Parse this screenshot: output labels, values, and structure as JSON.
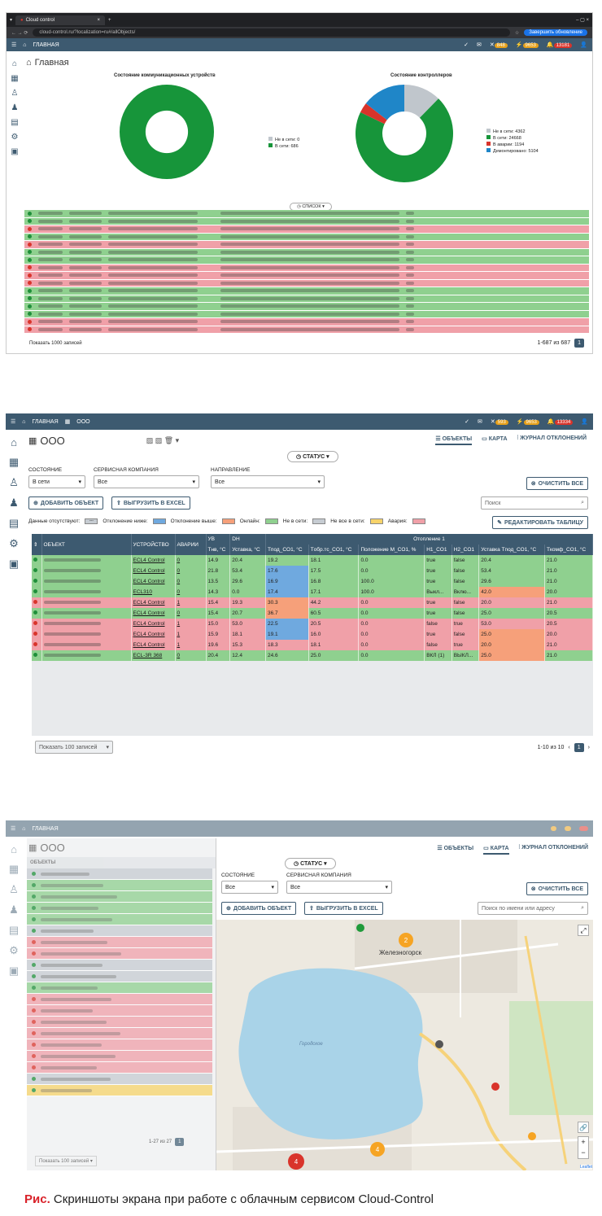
{
  "s1": {
    "browser_tab": "Cloud control",
    "url": "cloud-control.ru/?localization=ru#/allObjects/",
    "update_button": "Завершить обновление",
    "top_crumb": "ГЛАВНАЯ",
    "badges": [
      "848",
      "9653",
      "13181"
    ],
    "title": "Главная",
    "chart_data": [
      {
        "type": "pie",
        "title": "Состояние коммуникационных устройств",
        "legend": [
          "Не в сети: 0",
          "В сети: 686"
        ],
        "categories": [
          "Не в сети",
          "В сети"
        ],
        "values": [
          0,
          686
        ],
        "colors": [
          "#c0c6cc",
          "#17953a"
        ]
      },
      {
        "type": "pie",
        "title": "Состояние контроллеров",
        "legend": [
          "Не в сети: 4362",
          "В сети: 24668",
          "В аварии: 1194",
          "Демонтировано: 5104"
        ],
        "categories": [
          "Не в сети",
          "В сети",
          "В аварии",
          "Демонтировано"
        ],
        "values": [
          4362,
          24668,
          1194,
          5104
        ],
        "colors": [
          "#c0c6cc",
          "#17953a",
          "#d9342b",
          "#1f86c8"
        ]
      }
    ],
    "status_pill": "СПИСОК",
    "rows": [
      "green",
      "green",
      "red",
      "green",
      "red",
      "green",
      "green",
      "red",
      "red",
      "red",
      "green",
      "green",
      "green",
      "green",
      "red",
      "red"
    ],
    "footer_show": "Показать 1000 записей",
    "footer_range": "1-687 из 687",
    "footer_page": "1"
  },
  "s2": {
    "crumb_home": "ГЛАВНАЯ",
    "crumb_org": "ООО",
    "badges": [
      "593",
      "9653",
      "13334"
    ],
    "title": "ООО",
    "view_tabs": {
      "objects": "ОБЪЕКТЫ",
      "map": "КАРТА",
      "journal": "ЖУРНАЛ ОТКЛОНЕНИЙ"
    },
    "status_pill": "СТАТУС",
    "filters": {
      "state_label": "СОСТОЯНИЕ",
      "state_value": "В сети",
      "company_label": "СЕРВИСНАЯ КОМПАНИЯ",
      "company_value": "Все",
      "direction_label": "НАПРАВЛЕНИЕ",
      "direction_value": "Все",
      "clear": "ОЧИСТИТЬ ВСЕ"
    },
    "add_object": "ДОБАВИТЬ ОБЪЕКТ",
    "export_excel": "ВЫГРУЗИТЬ В EXCEL",
    "search_placeholder": "Поиск",
    "legend": {
      "no_data": "Данные отсутствуют:",
      "no_data_sym": "---",
      "below": "Отклонение ниже:",
      "above": "Отклонение выше:",
      "online": "Онлайн:",
      "offline": "Не в сети:",
      "partial": "Не все в сети:",
      "alarm": "Авария:"
    },
    "edit_table": "РЕДАКТИРОВАТЬ ТАБЛИЦУ",
    "columns": {
      "object": "ОБЪЕКТ",
      "device": "УСТРОЙСТВО",
      "alarms": "АВАРИИ",
      "grp_uv": "УВ",
      "grp_dh": "DH",
      "grp_heat": "Отопление 1",
      "tnv": "Тнв, °С",
      "ust": "Уставка, °С",
      "tpod": "Tпод_CO1, °С",
      "tobr": "Tобр.тс_CO1, °С",
      "pos": "Положение M_CO1, %",
      "h1": "H1_CO1",
      "h2": "H2_CO1",
      "ust_tpod": "Уставка Tпод_CO1, °С",
      "tkomf": "Tкомф_CO1, °С"
    },
    "rows": [
      {
        "st": "green",
        "dev": "ECL4 Control",
        "al": "0",
        "tnv": "14.9",
        "ust": "20.4",
        "tpod": "19.2",
        "tobr": "18.1",
        "pos": "0.0",
        "h1": "true",
        "h2": "false",
        "ust2": "20.4",
        "tk": "21.0"
      },
      {
        "st": "green",
        "dev": "ECL4 Control",
        "al": "0",
        "tnv": "21.8",
        "ust": "53.4",
        "tpod": "17.6",
        "tobr": "17.5",
        "pos": "0.0",
        "h1": "true",
        "h2": "false",
        "ust2": "53.4",
        "tk": "21.0",
        "b": "tpod"
      },
      {
        "st": "green",
        "dev": "ECL4 Control",
        "al": "0",
        "tnv": "13.5",
        "ust": "29.6",
        "tpod": "16.9",
        "tobr": "16.8",
        "pos": "100.0",
        "h1": "true",
        "h2": "false",
        "ust2": "29.6",
        "tk": "21.0",
        "b": "tpod"
      },
      {
        "st": "green",
        "dev": "ECL310",
        "al": "0",
        "tnv": "14.3",
        "ust": "0.0",
        "tpod": "17.4",
        "tobr": "17.1",
        "pos": "100.0",
        "h1": "Выкл...",
        "h2": "Вклю...",
        "ust2": "42.0",
        "tk": "20.0",
        "b": "tpod",
        "o": "ust2"
      },
      {
        "st": "red",
        "dev": "ECL4 Control",
        "al": "1",
        "tnv": "15.4",
        "ust": "19.3",
        "tpod": "30.3",
        "tobr": "44.2",
        "pos": "0.0",
        "h1": "true",
        "h2": "false",
        "ust2": "20.0",
        "tk": "21.0",
        "o": "tpod"
      },
      {
        "st": "green",
        "dev": "ECL4 Control",
        "al": "0",
        "tnv": "15.4",
        "ust": "20.7",
        "tpod": "36.7",
        "tobr": "60.5",
        "pos": "0.0",
        "h1": "true",
        "h2": "false",
        "ust2": "25.0",
        "tk": "20.5",
        "o": "tpod"
      },
      {
        "st": "red",
        "dev": "ECL4 Control",
        "al": "1",
        "tnv": "15.0",
        "ust": "53.0",
        "tpod": "22.5",
        "tobr": "20.5",
        "pos": "0.0",
        "h1": "false",
        "h2": "true",
        "ust2": "53.0",
        "tk": "20.5",
        "b": "tpod"
      },
      {
        "st": "red",
        "dev": "ECL4 Control",
        "al": "1",
        "tnv": "15.9",
        "ust": "18.1",
        "tpod": "19.1",
        "tobr": "16.0",
        "pos": "0.0",
        "h1": "true",
        "h2": "false",
        "ust2": "25.0",
        "tk": "20.0",
        "b": "tpod",
        "o": "ust2"
      },
      {
        "st": "red",
        "dev": "ECL4 Control",
        "al": "1",
        "tnv": "19.6",
        "ust": "15.3",
        "tpod": "18.3",
        "tobr": "18.1",
        "pos": "0.0",
        "h1": "false",
        "h2": "true",
        "ust2": "20.0",
        "tk": "21.0",
        "o": "ust2"
      },
      {
        "st": "green",
        "dev": "ECL-3R 368",
        "al": "0",
        "tnv": "20.4",
        "ust": "12.4",
        "tpod": "24.6",
        "tobr": "25.0",
        "pos": "0.0",
        "h1": "ВКЛ (1)",
        "h2": "ВЫКЛ...",
        "ust2": "25.0",
        "tk": "21.0",
        "o": "ust2"
      }
    ],
    "footer_show": "Показать 100 записей",
    "footer_range": "1-10 из 10",
    "footer_page": "1"
  },
  "s3": {
    "crumb_home": "ГЛАВНАЯ",
    "title": "ООО",
    "list_header": "ОБЪЕКТЫ",
    "list_rows": [
      "grey",
      "green",
      "green",
      "green",
      "green",
      "grey",
      "red",
      "red",
      "grey",
      "grey",
      "green",
      "red",
      "red",
      "red",
      "red",
      "red",
      "red",
      "red",
      "grey",
      "yellow"
    ],
    "view_tabs": {
      "objects": "ОБЪЕКТЫ",
      "map": "КАРТА",
      "journal": "ЖУРНАЛ ОТКЛОНЕНИЙ"
    },
    "status_pill": "СТАТУС",
    "filters": {
      "state_label": "СОСТОЯНИЕ",
      "state_value": "Все",
      "company_label": "СЕРВИСНАЯ КОМПАНИЯ",
      "company_value": "Все",
      "clear": "ОЧИСТИТЬ ВСЕ"
    },
    "add_object": "ДОБАВИТЬ ОБЪЕКТ",
    "export_excel": "ВЫГРУЗИТЬ В EXCEL",
    "search_placeholder": "Поиск по имени или адресу",
    "map": {
      "town": "Железногорск",
      "lake": "Городское",
      "clusters": [
        "2",
        "4",
        "4"
      ],
      "attribution": "Leaflet"
    },
    "list_footer_range": "1-27 из 27",
    "list_footer_page": "1",
    "list_footer_show": "Показать 100 записей"
  },
  "caption": {
    "label": "Рис.",
    "text": "Скриншоты экрана при работе с облачным сервисом Cloud-Control"
  }
}
